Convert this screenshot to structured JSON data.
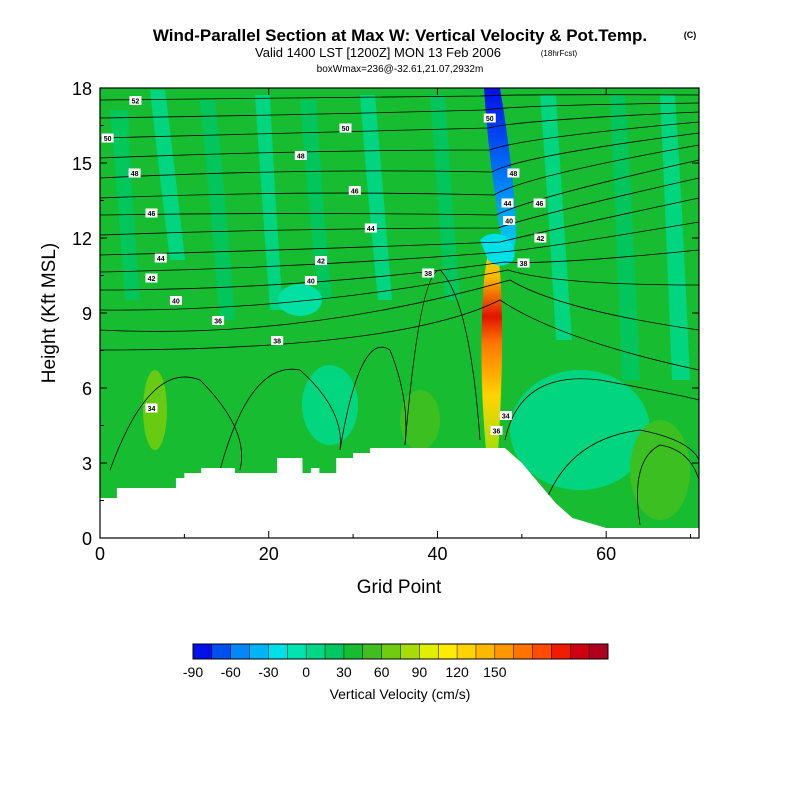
{
  "header": {
    "title": "Wind-Parallel Section at Max W: Vertical Velocity & Pot.Temp.",
    "title_mark": "(C)",
    "subtitle": "Valid 1400 LST [1200Z] MON 13 Feb 2006",
    "subtitle_note": "(18hrFcst)",
    "info": "boxWmax=236@-32.61,21.07,2932m"
  },
  "colorbar": {
    "label": "Vertical Velocity (cm/s)",
    "tick_labels": [
      "-90",
      "-60",
      "-30",
      "0",
      "30",
      "60",
      "90",
      "120",
      "150"
    ],
    "colors": [
      "#0010e8",
      "#0050f0",
      "#0088f8",
      "#00b4f8",
      "#00e0e8",
      "#00e4b0",
      "#00d888",
      "#00c860",
      "#18bc30",
      "#40c020",
      "#70cc10",
      "#a8dc08",
      "#e0f000",
      "#ffec00",
      "#ffd400",
      "#ffb800",
      "#ff9800",
      "#ff7400",
      "#ff4c00",
      "#f01c00",
      "#d00010",
      "#b00020"
    ]
  },
  "chart_data": {
    "type": "heatmap",
    "title": "Wind-Parallel Section at Max W: Vertical Velocity & Pot.Temp.",
    "xlabel": "Grid Point",
    "ylabel": "Height (Kft MSL)",
    "xlim": [
      0,
      71
    ],
    "ylim": [
      0,
      18
    ],
    "xticks": [
      0,
      20,
      40,
      60
    ],
    "yticks": [
      0,
      3,
      6,
      9,
      12,
      15,
      18
    ],
    "color_levels_cm_s": [
      -90,
      -75,
      -60,
      -45,
      -30,
      -15,
      0,
      15,
      30,
      45,
      60,
      75,
      90,
      105,
      120,
      135,
      150,
      165
    ],
    "max_w_cm_s": 236,
    "max_w_location": {
      "grid_point": 47,
      "height_kft": 8
    },
    "terrain_kft": [
      [
        0,
        1.6
      ],
      [
        2,
        1.6
      ],
      [
        2,
        2.0
      ],
      [
        9,
        2.0
      ],
      [
        9,
        2.4
      ],
      [
        10,
        2.4
      ],
      [
        10,
        2.6
      ],
      [
        12,
        2.6
      ],
      [
        12,
        2.8
      ],
      [
        16,
        2.8
      ],
      [
        16,
        2.6
      ],
      [
        21,
        2.6
      ],
      [
        21,
        3.2
      ],
      [
        24,
        3.2
      ],
      [
        24,
        2.6
      ],
      [
        25,
        2.6
      ],
      [
        25,
        2.8
      ],
      [
        26,
        2.8
      ],
      [
        26,
        2.6
      ],
      [
        28,
        2.6
      ],
      [
        28,
        3.2
      ],
      [
        30,
        3.2
      ],
      [
        30,
        3.4
      ],
      [
        32,
        3.4
      ],
      [
        32,
        3.6
      ],
      [
        46,
        3.6
      ],
      [
        48,
        3.6
      ],
      [
        50,
        3.0
      ],
      [
        52,
        2.2
      ],
      [
        54,
        1.4
      ],
      [
        56,
        0.8
      ],
      [
        58,
        0.6
      ],
      [
        60,
        0.4
      ],
      [
        71,
        0.4
      ]
    ],
    "theta_contour_labels": [
      {
        "text": "34",
        "x": 6.1,
        "y": 5.2
      },
      {
        "text": "34",
        "x": 48.1,
        "y": 4.9
      },
      {
        "text": "36",
        "x": 47.0,
        "y": 4.3
      },
      {
        "text": "38",
        "x": 21.0,
        "y": 7.9
      },
      {
        "text": "38",
        "x": 38.9,
        "y": 10.6
      },
      {
        "text": "38",
        "x": 50.2,
        "y": 11.0
      },
      {
        "text": "36",
        "x": 14.0,
        "y": 8.7
      },
      {
        "text": "40",
        "x": 9.0,
        "y": 9.5
      },
      {
        "text": "40",
        "x": 25.0,
        "y": 10.3
      },
      {
        "text": "40",
        "x": 48.5,
        "y": 12.7
      },
      {
        "text": "42",
        "x": 6.1,
        "y": 10.4
      },
      {
        "text": "42",
        "x": 26.2,
        "y": 11.1
      },
      {
        "text": "42",
        "x": 52.2,
        "y": 12.0
      },
      {
        "text": "44",
        "x": 7.2,
        "y": 11.2
      },
      {
        "text": "44",
        "x": 32.1,
        "y": 12.4
      },
      {
        "text": "44",
        "x": 48.3,
        "y": 13.4
      },
      {
        "text": "46",
        "x": 6.1,
        "y": 13.0
      },
      {
        "text": "46",
        "x": 30.2,
        "y": 13.9
      },
      {
        "text": "46",
        "x": 52.1,
        "y": 13.4
      },
      {
        "text": "48",
        "x": 4.1,
        "y": 14.6
      },
      {
        "text": "48",
        "x": 23.8,
        "y": 15.3
      },
      {
        "text": "48",
        "x": 49.0,
        "y": 14.6
      },
      {
        "text": "50",
        "x": 0.9,
        "y": 16.0
      },
      {
        "text": "50",
        "x": 29.1,
        "y": 16.4
      },
      {
        "text": "50",
        "x": 46.2,
        "y": 16.8
      },
      {
        "text": "52",
        "x": 4.2,
        "y": 17.5
      }
    ]
  }
}
